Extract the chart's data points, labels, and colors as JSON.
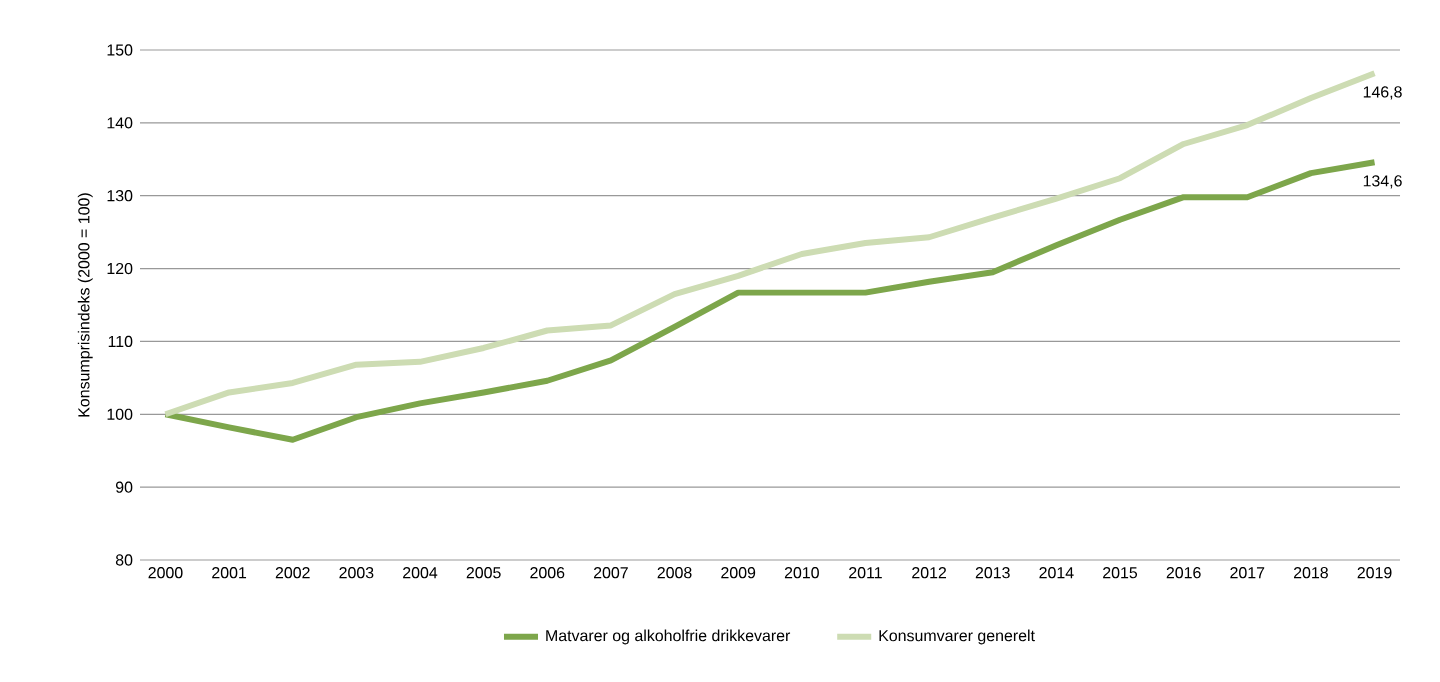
{
  "chart_data": {
    "type": "line",
    "ylabel": "Konsumprisindeks (2000 = 100)",
    "categories": [
      "2000",
      "2001",
      "2002",
      "2003",
      "2004",
      "2005",
      "2006",
      "2007",
      "2008",
      "2009",
      "2010",
      "2011",
      "2012",
      "2013",
      "2014",
      "2015",
      "2016",
      "2017",
      "2018",
      "2019"
    ],
    "series": [
      {
        "name": "Matvarer og alkoholfrie drikkevarer",
        "color": "#7da64b",
        "values": [
          100,
          98.2,
          96.5,
          99.6,
          101.5,
          103,
          104.6,
          107.4,
          112,
          116.7,
          116.7,
          116.7,
          118.2,
          119.5,
          123.2,
          126.7,
          129.8,
          129.8,
          133.1,
          134.6
        ]
      },
      {
        "name": "Konsumvarer generelt",
        "color": "#cddcb3",
        "values": [
          100,
          103,
          104.3,
          106.8,
          107.2,
          109.1,
          111.5,
          112.2,
          116.5,
          119,
          122,
          123.5,
          124.3,
          127,
          129.6,
          132.4,
          137.1,
          139.7,
          143.4,
          146.8
        ]
      }
    ],
    "annotations": [
      {
        "text": "146,8",
        "x": "2019",
        "y": 146.8
      },
      {
        "text": "134,6",
        "x": "2019",
        "y": 134.6
      }
    ],
    "ylim": [
      80,
      150
    ],
    "yticks": [
      80,
      90,
      100,
      110,
      120,
      130,
      140,
      150
    ],
    "grid": "y",
    "legend": "bottom",
    "marker": "none",
    "line_style": "solid"
  }
}
